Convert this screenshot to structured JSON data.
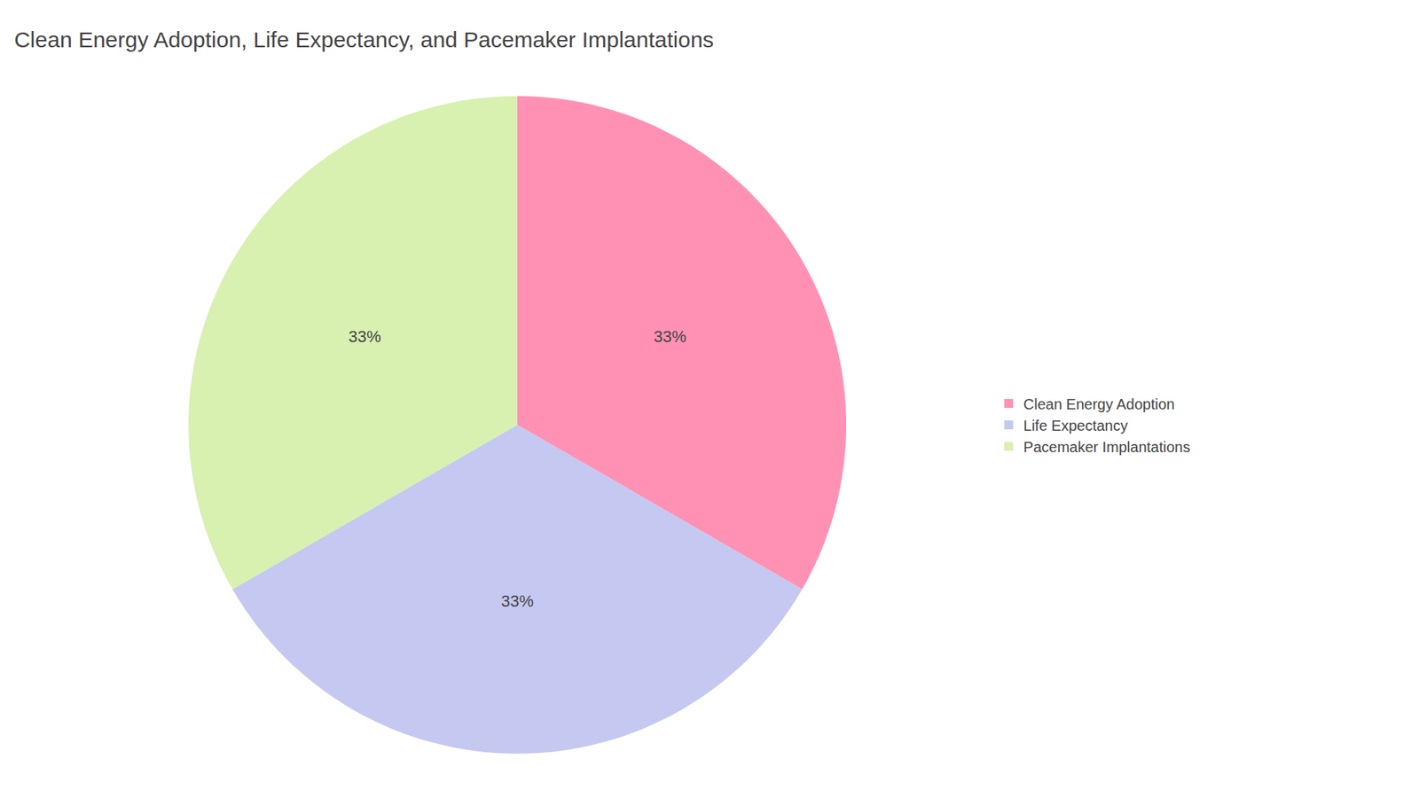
{
  "chart_data": {
    "type": "pie",
    "title": "Clean Energy Adoption, Life Expectancy, and Pacemaker Implantations",
    "categories": [
      "Clean Energy Adoption",
      "Life Expectancy",
      "Pacemaker Implantations"
    ],
    "values": [
      33,
      33,
      33
    ],
    "value_labels": [
      "33%",
      "33%",
      "33%"
    ],
    "data_labels": true,
    "colors": [
      "#FF91B4",
      "#C5C8F0",
      "#D8F0B0"
    ],
    "legend": "right"
  }
}
